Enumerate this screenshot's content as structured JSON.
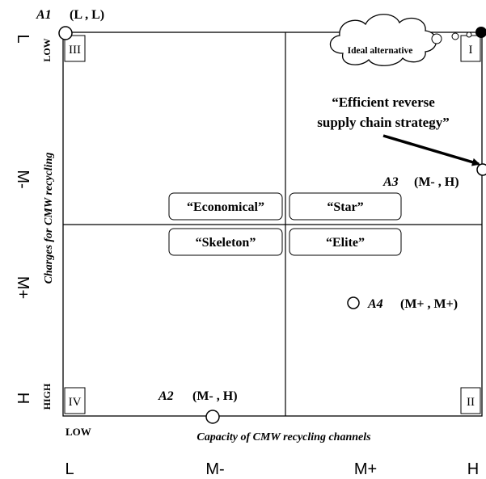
{
  "axes": {
    "x_ticks": [
      "L",
      "M-",
      "M+",
      "H"
    ],
    "y_ticks": [
      "L",
      "M-",
      "M+",
      "H"
    ],
    "x_label": "Capacity of CMW recycling channels",
    "y_label": "Charges for CMW recycling",
    "x_low": "LOW",
    "y_low": "LOW",
    "y_high": "HIGH"
  },
  "quadrants": {
    "I": "I",
    "II": "II",
    "III": "III",
    "IV": "IV"
  },
  "strategies": {
    "economical": "“Economical”",
    "star": "“Star”",
    "skeleton": "“Skeleton”",
    "elite": "“Elite”"
  },
  "ideal": "Ideal alternative",
  "efficient": {
    "line1": "“Efficient reverse",
    "line2": "supply chain strategy”"
  },
  "alternatives": [
    {
      "name": "A1",
      "value": "(L , L)"
    },
    {
      "name": "A2",
      "value": "(M- , H)"
    },
    {
      "name": "A3",
      "value": "(M- , H)"
    },
    {
      "name": "A4",
      "value": "(M+ , M+)"
    }
  ]
}
